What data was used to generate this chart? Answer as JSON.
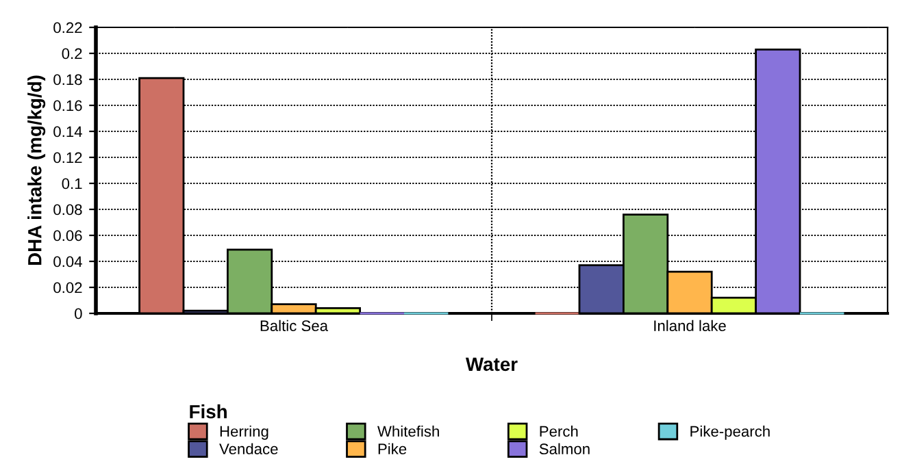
{
  "chart_data": {
    "type": "bar",
    "xlabel": "Water",
    "ylabel": "DHA intake (mg/kg/d)",
    "legend_title": "Fish",
    "categories": [
      "Baltic Sea",
      "Inland lake"
    ],
    "series": [
      {
        "name": "Herring",
        "color": "#cd7064",
        "values": [
          0.181,
          0
        ]
      },
      {
        "name": "Vendace",
        "color": "#52579a",
        "values": [
          0.002,
          0.037
        ]
      },
      {
        "name": "Whitefish",
        "color": "#7caf63",
        "values": [
          0.049,
          0.076
        ]
      },
      {
        "name": "Pike",
        "color": "#ffb64c",
        "values": [
          0.007,
          0.032
        ]
      },
      {
        "name": "Perch",
        "color": "#dcff4c",
        "values": [
          0.004,
          0.012
        ]
      },
      {
        "name": "Salmon",
        "color": "#8873db",
        "values": [
          0,
          0.203
        ]
      },
      {
        "name": "Pike-pearch",
        "color": "#71cfdc",
        "values": [
          0,
          0
        ]
      }
    ],
    "ylim": [
      0,
      0.22
    ],
    "yticks": [
      0,
      0.02,
      0.04,
      0.06,
      0.08,
      0.1,
      0.12,
      0.14,
      0.16,
      0.18,
      0.2,
      0.22
    ],
    "grid": true,
    "legend": "bottom"
  }
}
